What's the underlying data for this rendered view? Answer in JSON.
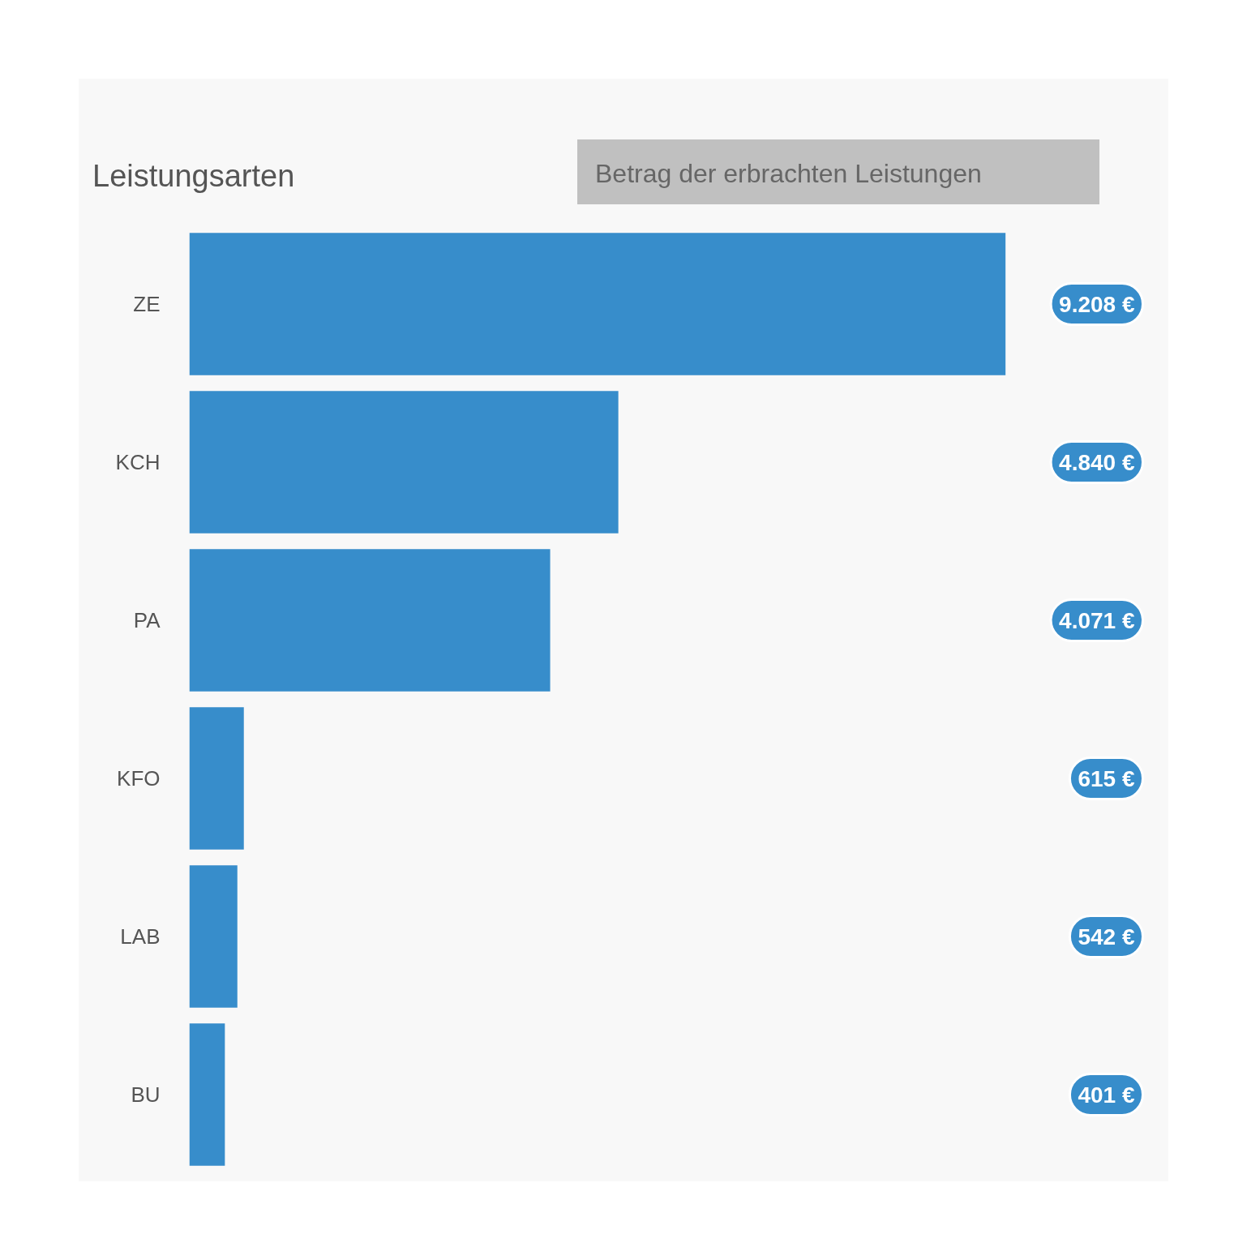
{
  "chart_data": {
    "type": "bar",
    "orientation": "horizontal",
    "title": "Leistungsarten",
    "subtitle": "Betrag der erbrachten Leistungen",
    "categories": [
      "ZE",
      "KCH",
      "PA",
      "KFO",
      "LAB",
      "BU"
    ],
    "values": [
      9208,
      4840,
      4071,
      615,
      542,
      401
    ],
    "value_labels": [
      "9.208 €",
      "4.840 €",
      "4.071 €",
      "615 €",
      "542 €",
      "401 €"
    ],
    "color": "#378dcb",
    "grid": false
  }
}
